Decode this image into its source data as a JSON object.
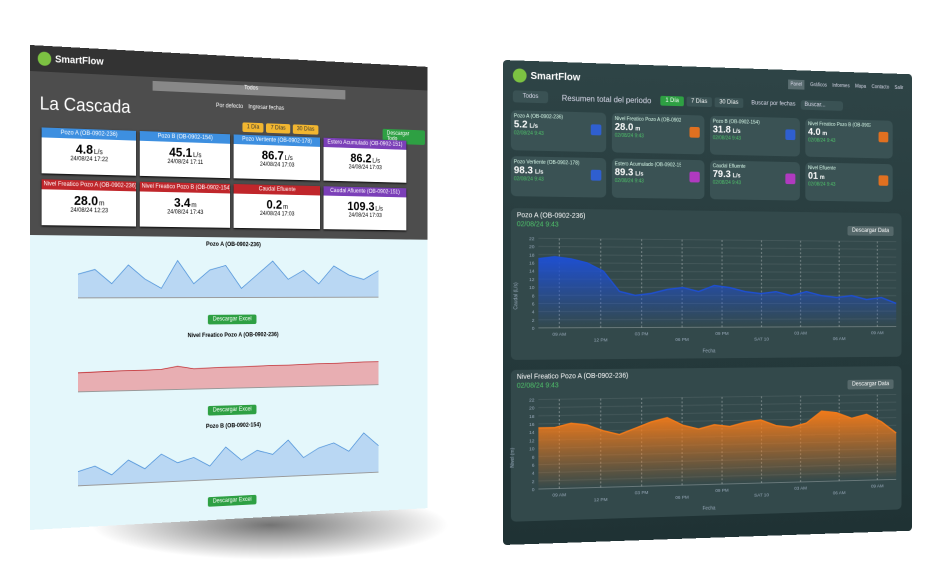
{
  "left": {
    "brand": "SmartFlow",
    "selector": "Todos",
    "title": "La Cascada",
    "radios": [
      "Por defecto",
      "Ingresar fechas"
    ],
    "ranges": [
      "1 Día",
      "7 Días",
      "30 Días"
    ],
    "download_all": "Descargar Todo",
    "cards": [
      {
        "label": "Pozo A (OB-0902-236)",
        "value": "4.8",
        "unit": "L/s",
        "date": "24/08/24 17:22",
        "color": "#3d8fe0"
      },
      {
        "label": "Pozo B (OB-0902-154)",
        "value": "45.1",
        "unit": "L/s",
        "date": "24/08/24 17:11",
        "color": "#3d8fe0"
      },
      {
        "label": "Pozo Vertiente (OB-0902-178)",
        "value": "86.7",
        "unit": "L/s",
        "date": "24/08/24 17:03",
        "color": "#3d8fe0"
      },
      {
        "label": "Estero Acumulado (OB-0902-151)",
        "value": "86.2",
        "unit": "L/s",
        "date": "24/08/24 17:03",
        "color": "#7b3fb8"
      },
      {
        "label": "Nivel Freatico Pozo A (OB-0902-236)",
        "value": "28.0",
        "unit": "m",
        "date": "24/08/24 12:23",
        "color": "#c0262b"
      },
      {
        "label": "Nivel Freatico Pozo B (OB-0902-154)",
        "value": "3.4",
        "unit": "m",
        "date": "24/08/24 17:43",
        "color": "#c0262b"
      },
      {
        "label": "Caudal Efluente",
        "value": "0.2",
        "unit": "m",
        "date": "24/08/24 17:03",
        "color": "#c0262b"
      },
      {
        "label": "Caudal Afluente (OB-0902-151)",
        "value": "109.3",
        "unit": "L/s",
        "date": "24/08/24 17:03",
        "color": "#7b3fb8"
      }
    ],
    "charts": [
      {
        "title": "Pozo A (OB-0902-236)",
        "button": "Descargar Excel",
        "color": "#4a90d9",
        "fill": "#b9d7f3",
        "ylim": [
          0,
          10
        ],
        "values": [
          5,
          6,
          3,
          7,
          4,
          2,
          8,
          3,
          6,
          7,
          2,
          5,
          8,
          4,
          6,
          3,
          7,
          5,
          4,
          6
        ]
      },
      {
        "title": "Nivel Freatico Pozo A (OB-0902-236)",
        "button": "Descargar Excel",
        "color": "#c0262b",
        "fill": "#e8aeb2",
        "ylim": [
          0,
          10
        ],
        "values": [
          4,
          4.1,
          4.2,
          4.3,
          4.3,
          4.4,
          5,
          4.4,
          4.5,
          4.6,
          4.6,
          4.7,
          4.8,
          4.8,
          4.9,
          5,
          5,
          5.1,
          5.2,
          5.2
        ]
      },
      {
        "title": "Pozo B (OB-0902-154)",
        "button": "Descargar Excel",
        "color": "#4a90d9",
        "fill": "#b9d7f3",
        "ylim": [
          0,
          10
        ],
        "values": [
          3,
          4,
          2,
          5,
          3,
          6,
          4,
          5,
          3,
          7,
          4,
          6,
          5,
          8,
          4,
          6,
          7,
          5,
          9,
          6
        ]
      }
    ]
  },
  "right": {
    "brand": "SmartFlow",
    "nav": [
      "Panel",
      "Gráficos",
      "Informes",
      "Mapa",
      "Contacto",
      "Salir"
    ],
    "selector": "Todos",
    "summary": "Resumen total del periodo",
    "ranges": [
      "1 Día",
      "7 Días",
      "30 Días"
    ],
    "date_search": "Buscar por fechas",
    "search": "Buscar...",
    "cards": [
      {
        "label": "Pozo A (OB-0902-236)",
        "value": "5.2",
        "unit": "L/s",
        "date": "02/08/24 9:43",
        "icon_color": "#2f5fd0"
      },
      {
        "label": "Nivel Freatico Pozo A (OB-0902-236)",
        "value": "28.0",
        "unit": "m",
        "date": "02/08/24 9:43",
        "icon_color": "#e07020"
      },
      {
        "label": "Pozo B (OB-0902-154)",
        "value": "31.8",
        "unit": "L/s",
        "date": "02/08/24 9:43",
        "icon_color": "#2f5fd0"
      },
      {
        "label": "Nivel Freatico Pozo B (OB-0902-154)",
        "value": "4.0",
        "unit": "m",
        "date": "02/08/24 9:43",
        "icon_color": "#e07020"
      },
      {
        "label": "Pozo Vertiente (OB-0902-178)",
        "value": "98.3",
        "unit": "L/s",
        "date": "02/08/24 9:43",
        "icon_color": "#2f5fd0"
      },
      {
        "label": "Estero Acumulado (OB-0902-151)",
        "value": "89.3",
        "unit": "L/s",
        "date": "02/08/24 9:43",
        "icon_color": "#b03ac0"
      },
      {
        "label": "Caudal Efluente",
        "value": "79.3",
        "unit": "L/s",
        "date": "02/08/24 9:43",
        "icon_color": "#b03ac0"
      },
      {
        "label": "Nivel Efluente",
        "value": "01",
        "unit": "m",
        "date": "02/08/24 9:43",
        "icon_color": "#e07020"
      }
    ],
    "charts": [
      {
        "title": "Pozo A (OB-0902-236)",
        "date": "02/08/24 9:43",
        "button": "Descargar Data",
        "y_label": "Caudal (L/s)",
        "x_label": "Fecha",
        "color": "#1e4fd0",
        "ylim": [
          0,
          22
        ],
        "yticks": [
          0,
          2,
          4,
          6,
          8,
          10,
          12,
          14,
          16,
          18,
          20,
          22
        ],
        "xlabels": [
          "09 AM",
          "12 PM",
          "03 PM",
          "06 PM",
          "09 PM",
          "SAT 10",
          "03 AM",
          "06 AM",
          "09 AM"
        ],
        "values": [
          17,
          17.5,
          17,
          16,
          14,
          9,
          8,
          8.5,
          9.5,
          10,
          9,
          10.5,
          10,
          9,
          8.5,
          9,
          8,
          9,
          8,
          7.5,
          8,
          7,
          7.5,
          6
        ]
      },
      {
        "title": "Nivel Freatico Pozo A (OB-0902-236)",
        "date": "02/08/24 9:43",
        "button": "Descargar Data",
        "y_label": "Nivel (m)",
        "x_label": "Fecha",
        "color": "#f07a1a",
        "ylim": [
          0,
          22
        ],
        "yticks": [
          0,
          2,
          4,
          6,
          8,
          10,
          12,
          14,
          16,
          18,
          20,
          22
        ],
        "xlabels": [
          "09 AM",
          "12 PM",
          "03 PM",
          "06 PM",
          "09 PM",
          "SAT 10",
          "03 AM",
          "06 AM",
          "09 AM"
        ],
        "values": [
          15,
          15,
          16,
          15.5,
          14,
          13,
          14.5,
          16,
          17,
          15,
          14,
          15,
          14.5,
          15.5,
          16,
          14.5,
          14,
          15,
          18,
          17.5,
          16,
          17,
          15,
          12
        ]
      }
    ]
  }
}
